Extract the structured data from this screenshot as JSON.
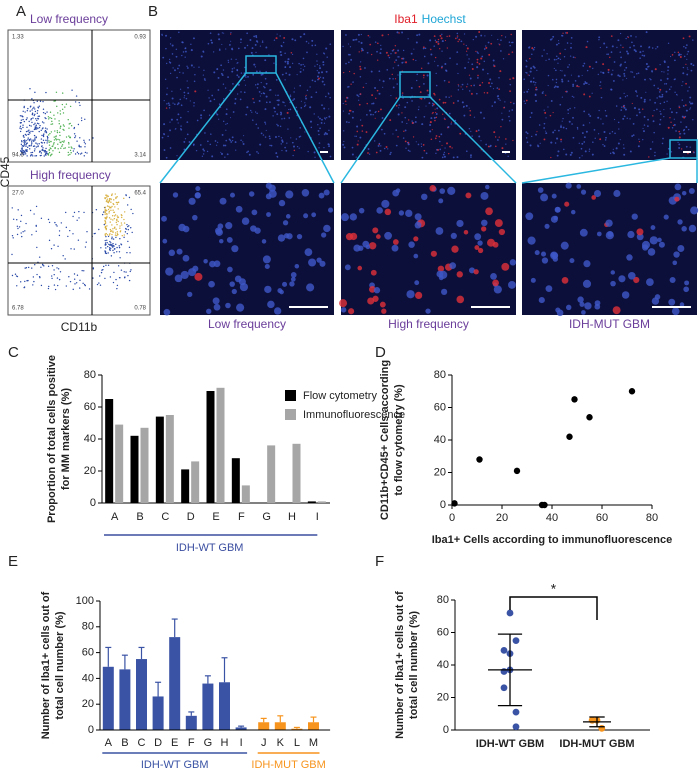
{
  "flow": {
    "label": "A",
    "y_label": "CD45",
    "x_label": "CD11b",
    "plots": [
      {
        "title": "Low frequency",
        "quadrants": [
          "1.33",
          "0.93",
          "94.6",
          "3.14"
        ]
      },
      {
        "title": "High frequency",
        "quadrants": [
          "27.0",
          "65.4",
          "6.78",
          "0.78"
        ]
      }
    ]
  },
  "microscopy": {
    "label": "B",
    "stain": [
      "Iba1",
      "Hoechst"
    ],
    "stain_colors": [
      "#e0202a",
      "#1fa6d6"
    ],
    "captions": [
      "Low frequency",
      "High frequency",
      "IDH-MUT GBM"
    ]
  },
  "chart_data": [
    {
      "type": "bar",
      "label": "C",
      "y_label": [
        "Proportion of total cells positive",
        "for MM markers (%)"
      ],
      "categories": [
        "A",
        "B",
        "C",
        "D",
        "E",
        "F",
        "G",
        "H",
        "I"
      ],
      "series": [
        {
          "name": "Flow cytometry",
          "color": "#000000",
          "values": [
            65,
            42,
            54,
            21,
            70,
            28,
            0,
            0,
            1
          ]
        },
        {
          "name": "Immunofluorescence",
          "color": "#a6a6a6",
          "values": [
            49,
            47,
            55,
            26,
            72,
            11,
            36,
            37,
            1
          ]
        }
      ],
      "ylim": [
        0,
        80
      ],
      "yticks": [
        0,
        20,
        40,
        60,
        80
      ],
      "group_label": "IDH-WT GBM",
      "group_color": "#3b4ea0"
    },
    {
      "type": "scatter",
      "label": "D",
      "y_label": [
        "CD11b+CD45+ Cells according",
        "to flow cytometry (%)"
      ],
      "x_label": "Iba1+ Cells according to immunofluorescence",
      "x": [
        49,
        47,
        55,
        26,
        72,
        11,
        36,
        37,
        1
      ],
      "values": [
        65,
        42,
        54,
        21,
        70,
        28,
        0,
        0,
        1
      ],
      "color": "#000000",
      "xlim": [
        0,
        80
      ],
      "xticks": [
        0,
        20,
        40,
        60,
        80
      ],
      "ylim": [
        0,
        80
      ],
      "yticks": [
        0,
        20,
        40,
        60,
        80
      ]
    },
    {
      "type": "errorbar",
      "label": "E",
      "y_label": [
        "Number of Iba1+ cells out of",
        "total cell number (%)"
      ],
      "categories": [
        "A",
        "B",
        "C",
        "D",
        "E",
        "F",
        "G",
        "H",
        "I",
        "J",
        "K",
        "L",
        "M"
      ],
      "values": [
        49,
        47,
        55,
        26,
        72,
        11,
        36,
        37,
        2,
        6,
        6,
        1,
        6
      ],
      "errors": [
        15,
        11,
        9,
        11,
        14,
        3,
        6,
        19,
        1,
        3,
        5,
        1,
        4
      ],
      "groups": [
        {
          "name": "IDH-WT GBM",
          "color": "#3a53a4",
          "count": 9
        },
        {
          "name": "IDH-MUT GBM",
          "color": "#f7941d",
          "count": 4
        }
      ],
      "ylim": [
        0,
        100
      ],
      "yticks": [
        0,
        20,
        40,
        60,
        80,
        100
      ]
    },
    {
      "type": "dot",
      "label": "F",
      "y_label": [
        "Number of Iba1+ cells out of",
        "total cell number (%)"
      ],
      "series": [
        {
          "name": "IDH-WT GBM",
          "color": "#3a53a4",
          "values": [
            49,
            47,
            55,
            26,
            72,
            11,
            36,
            37,
            2
          ],
          "mean": 37,
          "sd": 22
        },
        {
          "name": "IDH-MUT GBM",
          "color": "#f7941d",
          "values": [
            6,
            6,
            1,
            6
          ],
          "mean": 5,
          "sd": 3
        }
      ],
      "annotation": "*",
      "ylim": [
        0,
        80
      ],
      "yticks": [
        0,
        20,
        40,
        60,
        80
      ]
    }
  ]
}
